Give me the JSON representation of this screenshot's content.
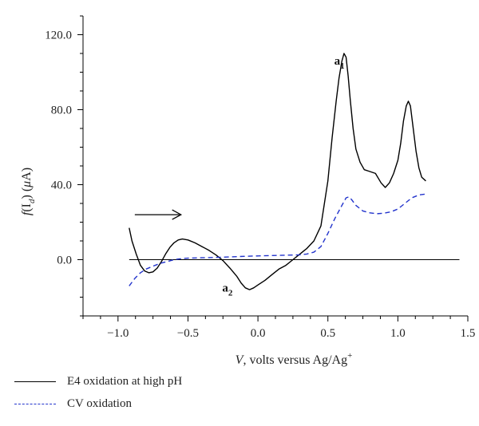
{
  "chart_data": {
    "type": "line",
    "xlabel_var": "V",
    "xlabel_rest": ", volts versus Ag/Ag",
    "xlabel_sup": "+",
    "ylabel_pre": "f",
    "ylabel_arg": "(I",
    "ylabel_sub": "d",
    "ylabel_post": ") (",
    "ylabel_mu": "μ",
    "ylabel_unit": "A)",
    "xlim": [
      -1.25,
      1.5
    ],
    "ylim": [
      -30,
      130
    ],
    "x_ticks": [
      -1.0,
      -0.5,
      0.0,
      0.5,
      1.0,
      1.5
    ],
    "x_tick_labels": [
      "−1.0",
      "−0.5",
      "0.0",
      "0.5",
      "1.0",
      "1.5"
    ],
    "y_ticks": [
      0,
      40,
      80,
      120
    ],
    "y_tick_labels": [
      "0.0",
      "40.0",
      "80.0",
      "120.0"
    ],
    "annotations": [
      {
        "base": "a",
        "sub": "1",
        "x": 0.545,
        "y": 104
      },
      {
        "base": "a",
        "sub": "2",
        "x": -0.255,
        "y": -17
      }
    ],
    "arrow": {
      "x_start": -0.88,
      "x_end": -0.55,
      "y": 24
    },
    "series": [
      {
        "name": "E4 oxidation at high pH",
        "color": "#000000",
        "dash": "solid",
        "x": [
          -0.92,
          -0.9,
          -0.87,
          -0.84,
          -0.81,
          -0.78,
          -0.75,
          -0.72,
          -0.69,
          -0.66,
          -0.63,
          -0.6,
          -0.57,
          -0.54,
          -0.5,
          -0.45,
          -0.4,
          -0.35,
          -0.3,
          -0.25,
          -0.2,
          -0.15,
          -0.12,
          -0.09,
          -0.06,
          -0.03,
          0.0,
          0.05,
          0.1,
          0.15,
          0.2,
          0.25,
          0.3,
          0.35,
          0.4,
          0.45,
          0.5,
          0.53,
          0.56,
          0.58,
          0.6,
          0.615,
          0.63,
          0.645,
          0.66,
          0.68,
          0.7,
          0.73,
          0.76,
          0.8,
          0.84,
          0.88,
          0.91,
          0.94,
          0.97,
          1.0,
          1.02,
          1.04,
          1.06,
          1.075,
          1.09,
          1.11,
          1.13,
          1.15,
          1.17,
          1.2
        ],
        "y": [
          17,
          10,
          3,
          -3,
          -6,
          -7,
          -6.5,
          -4.5,
          -1,
          3,
          6.5,
          9,
          10.5,
          11,
          10.5,
          9,
          7,
          5,
          2.5,
          -0.5,
          -4.5,
          -9,
          -12.5,
          -15,
          -16,
          -15,
          -13.5,
          -11,
          -8,
          -5,
          -3,
          0,
          3,
          6,
          10,
          18,
          42,
          65,
          85,
          97,
          106,
          110,
          108,
          98,
          85,
          70,
          59,
          52,
          48,
          47,
          46,
          41,
          38.5,
          41,
          46,
          53,
          62,
          74,
          82,
          84.5,
          82,
          70,
          58,
          49,
          44,
          42
        ]
      },
      {
        "name": "CV oxidation",
        "color": "#2233cc",
        "dash": "dashed",
        "x": [
          -0.92,
          -0.88,
          -0.84,
          -0.8,
          -0.75,
          -0.7,
          -0.65,
          -0.6,
          -0.55,
          -0.5,
          -0.4,
          -0.3,
          -0.2,
          -0.1,
          0.0,
          0.1,
          0.2,
          0.3,
          0.35,
          0.4,
          0.45,
          0.5,
          0.55,
          0.6,
          0.63,
          0.65,
          0.67,
          0.7,
          0.75,
          0.8,
          0.85,
          0.9,
          0.95,
          1.0,
          1.05,
          1.1,
          1.15,
          1.2
        ],
        "y": [
          -14,
          -10,
          -7,
          -5,
          -3.5,
          -2,
          -1,
          0,
          0.5,
          0.8,
          1,
          1.2,
          1.5,
          1.8,
          2,
          2.2,
          2.4,
          2.6,
          3,
          4,
          7,
          14,
          22,
          29,
          33,
          33.5,
          32,
          29,
          26,
          25,
          24.5,
          24.8,
          25.5,
          27,
          30,
          33,
          34.5,
          35
        ]
      }
    ]
  }
}
